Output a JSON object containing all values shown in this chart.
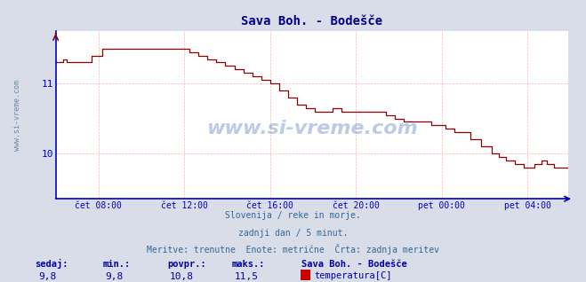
{
  "title": "Sava Boh. - Bodešče",
  "title_color": "#00008B",
  "bg_color": "#d8dde8",
  "plot_bg_color": "#ffffff",
  "line_color": "#8B0000",
  "axis_color": "#0000cd",
  "grid_color": "#ffb0b0",
  "ylabel_text": "www.si-vreme.com",
  "ylabel_color": "#6688aa",
  "xtick_labels": [
    "čet 08:00",
    "čet 12:00",
    "čet 16:00",
    "čet 20:00",
    "pet 00:00",
    "pet 04:00"
  ],
  "ytick_values": [
    10.0,
    11.0
  ],
  "ylim": [
    9.35,
    11.75
  ],
  "xlim": [
    0,
    287
  ],
  "subtitle_lines": [
    "Slovenija / reke in morje.",
    "zadnji dan / 5 minut.",
    "Meritve: trenutne  Enote: metrične  Črta: zadnja meritev"
  ],
  "subtitle_color": "#336699",
  "stats_labels": [
    "sedaj:",
    "min.:",
    "povpr.:",
    "maks.:"
  ],
  "stats_values": [
    "9,8",
    "9,8",
    "10,8",
    "11,5"
  ],
  "stats_color": "#0000aa",
  "legend_title": "Sava Boh. - Bodešče",
  "legend_label": "temperatura[C]",
  "legend_color": "#cc0000",
  "n_points": 288,
  "x_tick_positions": [
    24,
    72,
    120,
    168,
    216,
    264
  ]
}
